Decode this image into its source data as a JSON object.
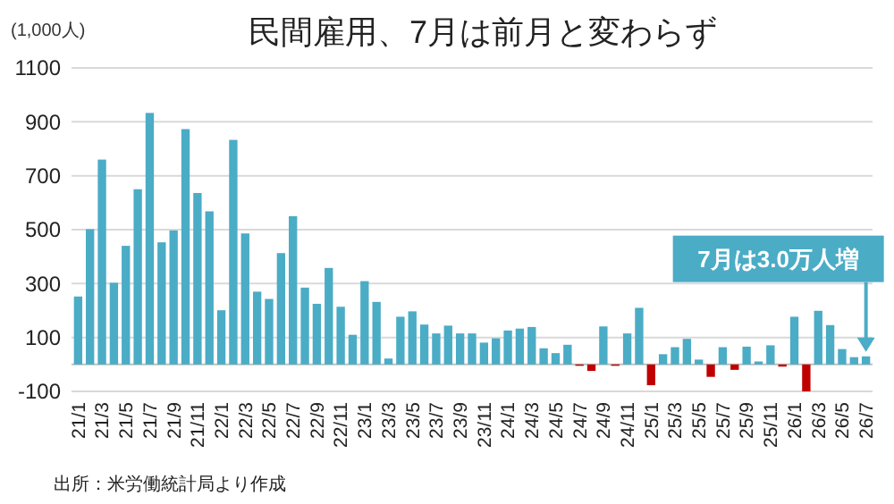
{
  "chart_data": {
    "type": "bar",
    "title": "民間雇用、7月は前月と変わらず",
    "ylabel": "(1,000人)",
    "categories": [
      "21/1",
      null,
      "21/3",
      null,
      "21/5",
      null,
      "21/7",
      null,
      "21/9",
      null,
      "21/11",
      null,
      "22/1",
      null,
      "22/3",
      null,
      "22/5",
      null,
      "22/7",
      null,
      "22/9",
      null,
      "22/11",
      null,
      "23/1",
      null,
      "23/3",
      null,
      "23/5",
      null,
      "23/7",
      null,
      "23/9",
      null,
      "23/11",
      null,
      "24/1",
      null,
      "24/3",
      null,
      "24/5",
      null,
      "24/7",
      null,
      "24/9",
      null,
      "24/11",
      null,
      "25/1",
      null,
      "25/3",
      null,
      "25/5",
      null,
      "25/7",
      null,
      "25/9",
      null,
      "25/11",
      null,
      "26/1",
      null,
      "26/3",
      null,
      "26/5",
      null,
      "26/7"
    ],
    "values": [
      252,
      502,
      760,
      303,
      440,
      650,
      933,
      453,
      497,
      873,
      636,
      568,
      201,
      833,
      486,
      270,
      243,
      413,
      550,
      285,
      225,
      358,
      214,
      110,
      309,
      232,
      22,
      177,
      197,
      148,
      115,
      144,
      115,
      115,
      81,
      97,
      126,
      133,
      139,
      60,
      42,
      73,
      -5,
      -24,
      141,
      -5,
      115,
      210,
      -77,
      38,
      64,
      95,
      18,
      -46,
      64,
      -20,
      66,
      11,
      71,
      -8,
      177,
      -100,
      199,
      146,
      57,
      27,
      30
    ],
    "colors": [
      "#4bacc6",
      "#4bacc6",
      "#4bacc6",
      "#4bacc6",
      "#4bacc6",
      "#4bacc6",
      "#4bacc6",
      "#4bacc6",
      "#4bacc6",
      "#4bacc6",
      "#4bacc6",
      "#4bacc6",
      "#4bacc6",
      "#4bacc6",
      "#4bacc6",
      "#4bacc6",
      "#4bacc6",
      "#4bacc6",
      "#4bacc6",
      "#4bacc6",
      "#4bacc6",
      "#4bacc6",
      "#4bacc6",
      "#4bacc6",
      "#4bacc6",
      "#4bacc6",
      "#4bacc6",
      "#4bacc6",
      "#4bacc6",
      "#4bacc6",
      "#4bacc6",
      "#4bacc6",
      "#4bacc6",
      "#4bacc6",
      "#4bacc6",
      "#4bacc6",
      "#4bacc6",
      "#4bacc6",
      "#4bacc6",
      "#4bacc6",
      "#4bacc6",
      "#4bacc6",
      "#c00000",
      "#c00000",
      "#4bacc6",
      "#c00000",
      "#4bacc6",
      "#4bacc6",
      "#c00000",
      "#4bacc6",
      "#4bacc6",
      "#4bacc6",
      "#4bacc6",
      "#c00000",
      "#4bacc6",
      "#c00000",
      "#4bacc6",
      "#4bacc6",
      "#4bacc6",
      "#c00000",
      "#4bacc6",
      "#c00000",
      "#4bacc6",
      "#4bacc6",
      "#4bacc6",
      "#4bacc6",
      "#4bacc6"
    ],
    "ylim": [
      -100,
      1100
    ],
    "yticks": [
      -100,
      100,
      300,
      500,
      700,
      900,
      1100
    ],
    "grid": "y",
    "annotations": [
      "7月は3.0万人増",
      "出所：米労働統計局より作成"
    ]
  }
}
